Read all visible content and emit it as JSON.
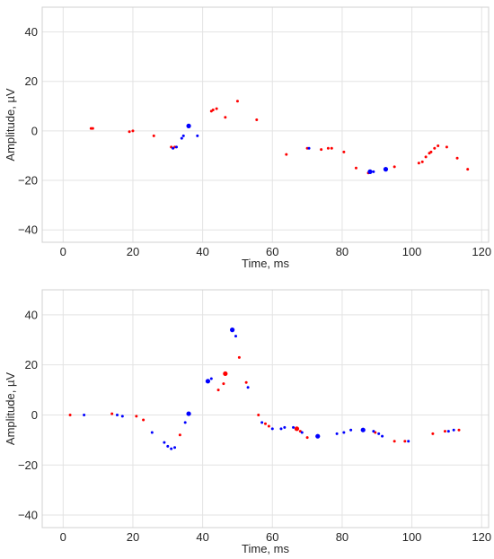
{
  "chart_data": [
    {
      "type": "scatter",
      "xlabel": "Time, ms",
      "ylabel": "Amplitude, µV",
      "xlim": [
        -6,
        122
      ],
      "ylim": [
        -45,
        50
      ],
      "xticks": [
        "0",
        "20",
        "40",
        "60",
        "80",
        "100",
        "120"
      ],
      "yticks": [
        "40",
        "20",
        "0",
        "−20",
        "−40"
      ],
      "grid": true,
      "series": [
        {
          "color": "#ff0000",
          "points": [
            [
              8,
              1,
              2
            ],
            [
              8.5,
              1,
              2
            ],
            [
              19,
              -0.3,
              2
            ],
            [
              20,
              0,
              2
            ],
            [
              26,
              -2,
              2
            ],
            [
              31,
              -6.5,
              2
            ],
            [
              32,
              -6.5,
              2
            ],
            [
              42.5,
              8,
              2
            ],
            [
              43,
              8.5,
              2
            ],
            [
              44,
              9,
              2
            ],
            [
              46.5,
              5.5,
              2
            ],
            [
              50,
              12,
              2
            ],
            [
              55.5,
              4.5,
              2
            ],
            [
              64,
              -9.5,
              2
            ],
            [
              70,
              -7,
              2
            ],
            [
              74,
              -7.5,
              2
            ],
            [
              76,
              -7,
              2
            ],
            [
              77,
              -7,
              2
            ],
            [
              80.5,
              -8.5,
              2
            ],
            [
              84,
              -15,
              2
            ],
            [
              87.5,
              -17,
              2
            ],
            [
              95,
              -14.5,
              2
            ],
            [
              102,
              -13,
              2
            ],
            [
              103,
              -12.5,
              2
            ],
            [
              104,
              -10.5,
              2
            ],
            [
              105,
              -9,
              2
            ],
            [
              105.5,
              -8.5,
              2
            ],
            [
              106.5,
              -7,
              2
            ],
            [
              107.5,
              -6,
              2
            ],
            [
              110,
              -6.5,
              2
            ],
            [
              113,
              -11,
              2
            ],
            [
              116,
              -15.5,
              2
            ]
          ]
        },
        {
          "color": "#0000ff",
          "points": [
            [
              31.5,
              -7,
              2
            ],
            [
              32.5,
              -6.5,
              2
            ],
            [
              34,
              -3,
              2
            ],
            [
              34.5,
              -2,
              2
            ],
            [
              36,
              2,
              3
            ],
            [
              38.5,
              -2,
              2
            ],
            [
              70.5,
              -7,
              2
            ],
            [
              88,
              -16.5,
              3
            ],
            [
              89,
              -16.5,
              2
            ],
            [
              92.5,
              -15.5,
              3
            ]
          ]
        }
      ]
    },
    {
      "type": "scatter",
      "xlabel": "Time, ms",
      "ylabel": "Amplitude, µV",
      "xlim": [
        -6,
        122
      ],
      "ylim": [
        -45,
        50
      ],
      "xticks": [
        "0",
        "20",
        "40",
        "60",
        "80",
        "100",
        "120"
      ],
      "yticks": [
        "40",
        "20",
        "0",
        "−20",
        "−40"
      ],
      "grid": true,
      "series": [
        {
          "color": "#ff0000",
          "points": [
            [
              2,
              0,
              2
            ],
            [
              14,
              0.5,
              2
            ],
            [
              21,
              -0.5,
              2
            ],
            [
              23,
              -2,
              2
            ],
            [
              33.5,
              -8,
              2
            ],
            [
              44.5,
              10,
              2
            ],
            [
              46,
              12.5,
              2
            ],
            [
              46.5,
              16.5,
              3
            ],
            [
              50.5,
              23,
              2
            ],
            [
              52.5,
              13,
              2
            ],
            [
              56,
              0,
              2
            ],
            [
              58,
              -3.5,
              2
            ],
            [
              59,
              -4.5,
              2
            ],
            [
              67,
              -5.5,
              3
            ],
            [
              68,
              -6.5,
              2
            ],
            [
              70,
              -9,
              2
            ],
            [
              89.5,
              -7,
              2
            ],
            [
              95,
              -10.5,
              2
            ],
            [
              98,
              -10.5,
              2
            ],
            [
              106,
              -7.5,
              2
            ],
            [
              109.5,
              -6.5,
              2
            ],
            [
              113.5,
              -6,
              2
            ]
          ]
        },
        {
          "color": "#0000ff",
          "points": [
            [
              6,
              0,
              2
            ],
            [
              15.5,
              0,
              2
            ],
            [
              17,
              -0.5,
              2
            ],
            [
              25.5,
              -7,
              2
            ],
            [
              29,
              -11,
              2
            ],
            [
              30,
              -12.5,
              2
            ],
            [
              31,
              -13.5,
              2
            ],
            [
              32,
              -13,
              2
            ],
            [
              35,
              -3,
              2
            ],
            [
              36,
              0.5,
              3
            ],
            [
              41.5,
              13.5,
              3
            ],
            [
              42.5,
              14.5,
              2
            ],
            [
              48.5,
              34,
              3
            ],
            [
              49.5,
              31.5,
              2
            ],
            [
              53,
              11,
              2
            ],
            [
              57,
              -3,
              2
            ],
            [
              60,
              -5.5,
              2
            ],
            [
              62.5,
              -5.5,
              2
            ],
            [
              63.5,
              -5,
              2
            ],
            [
              66,
              -5,
              2
            ],
            [
              68.5,
              -7,
              2
            ],
            [
              73,
              -8.5,
              3
            ],
            [
              78.5,
              -7.5,
              2
            ],
            [
              80.5,
              -7,
              2
            ],
            [
              82.5,
              -6,
              2
            ],
            [
              86,
              -6,
              3
            ],
            [
              89,
              -6.5,
              2
            ],
            [
              90.5,
              -7.5,
              2
            ],
            [
              91.5,
              -8.5,
              2
            ],
            [
              99,
              -10.5,
              2
            ],
            [
              110.5,
              -6.5,
              2
            ],
            [
              112,
              -6,
              2
            ]
          ]
        }
      ]
    }
  ]
}
